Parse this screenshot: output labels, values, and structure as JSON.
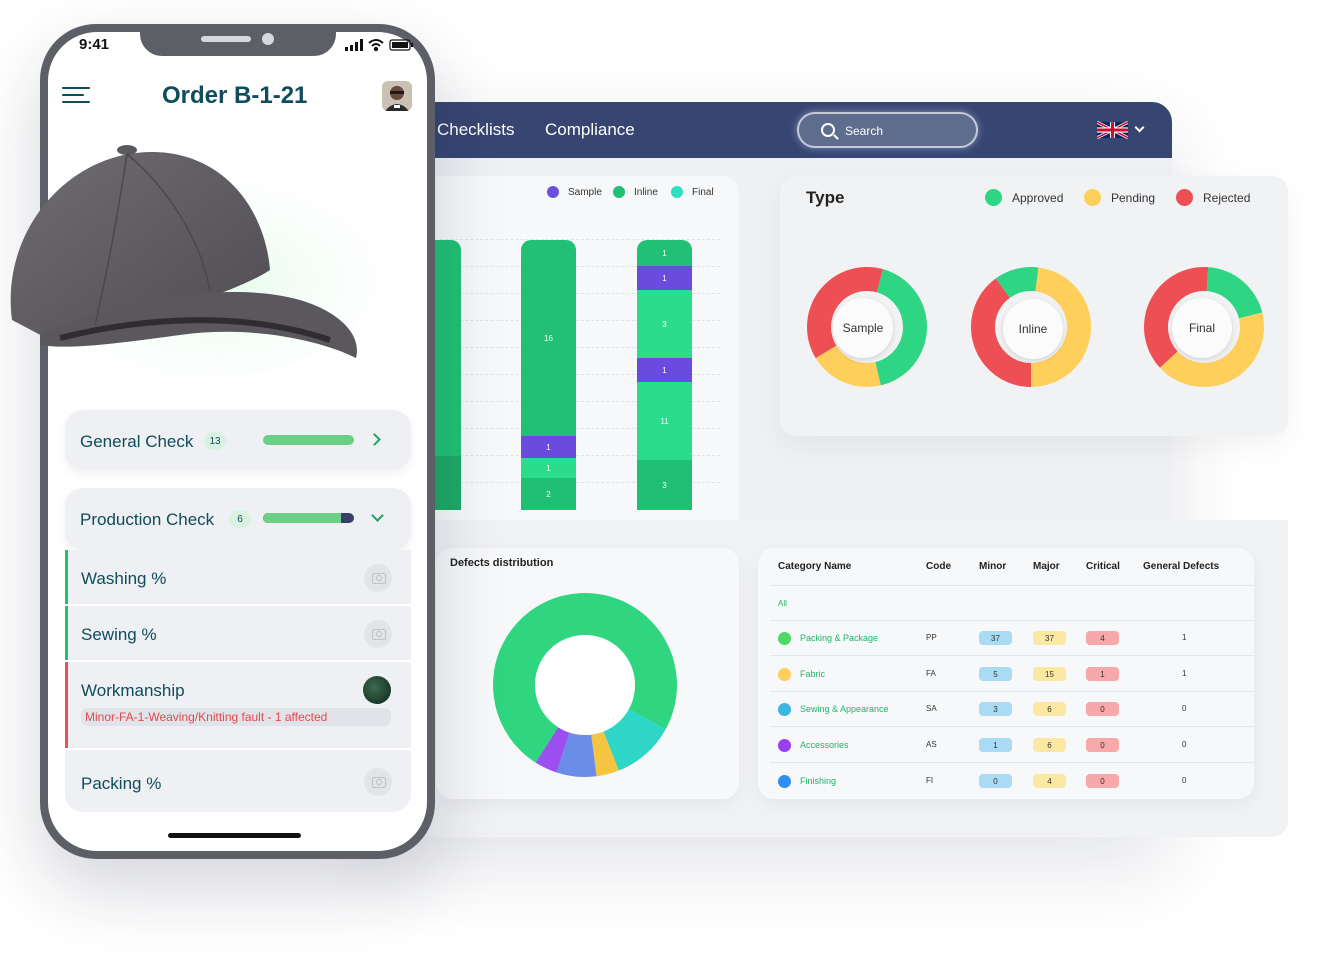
{
  "dashboard": {
    "nav": [
      "Checklists",
      "Compliance"
    ],
    "search_placeholder": "Search",
    "language_icon": "uk-flag-icon",
    "bar_chart": {
      "legend": [
        {
          "label": "Sample",
          "color": "#6c4fe0"
        },
        {
          "label": "Inline",
          "color": "#1fbf74"
        },
        {
          "label": "Final",
          "color": "#2ee0c0"
        }
      ]
    },
    "type_panel": {
      "title": "Type",
      "legend": [
        {
          "label": "Approved",
          "color": "#2ed683"
        },
        {
          "label": "Pending",
          "color": "#ffcf5c"
        },
        {
          "label": "Rejected",
          "color": "#ee4f55"
        }
      ],
      "donuts": [
        {
          "label": "Sample",
          "slices": [
            {
              "status": "Approved",
              "value": 0.42
            },
            {
              "status": "Pending",
              "value": 0.2
            },
            {
              "status": "Rejected",
              "value": 0.38
            }
          ]
        },
        {
          "label": "Inline",
          "slices": [
            {
              "status": "Approved",
              "value": 0.12
            },
            {
              "status": "Pending",
              "value": 0.48
            },
            {
              "status": "Rejected",
              "value": 0.4
            }
          ]
        },
        {
          "label": "Final",
          "slices": [
            {
              "status": "Approved",
              "value": 0.2
            },
            {
              "status": "Pending",
              "value": 0.42
            },
            {
              "status": "Rejected",
              "value": 0.38
            }
          ]
        }
      ]
    },
    "defects_distribution": {
      "title": "Defects distribution"
    },
    "table": {
      "headers": [
        "Category Name",
        "Code",
        "Minor",
        "Major",
        "Critical",
        "General Defects"
      ],
      "filter_label": "All",
      "rows": [
        {
          "name": "Packing & Package",
          "code": "PP",
          "minor": "37",
          "major": "37",
          "critical": "4",
          "general": "1",
          "color": "#4cd964"
        },
        {
          "name": "Fabric",
          "code": "FA",
          "minor": "5",
          "major": "15",
          "critical": "1",
          "general": "1",
          "color": "#ffcf5c"
        },
        {
          "name": "Sewing & Appearance",
          "code": "SA",
          "minor": "3",
          "major": "6",
          "critical": "0",
          "general": "0",
          "color": "#3cb5e0"
        },
        {
          "name": "Accessories",
          "code": "AS",
          "minor": "1",
          "major": "6",
          "critical": "0",
          "general": "0",
          "color": "#9b3df0"
        },
        {
          "name": "Finishing",
          "code": "FI",
          "minor": "0",
          "major": "4",
          "critical": "0",
          "general": "0",
          "color": "#2f8ff0"
        }
      ]
    }
  },
  "chart_data": [
    {
      "type": "bar",
      "stacked": true,
      "categories": [
        "",
        "",
        ""
      ],
      "series": [
        {
          "name": "Sample",
          "values": [
            null,
            1,
            1
          ]
        },
        {
          "name": "Inline",
          "values": [
            null,
            2,
            3
          ]
        },
        {
          "name": "Final",
          "values": [
            null,
            1,
            3
          ]
        }
      ],
      "data_labels": [
        [],
        [
          "16",
          "1",
          "1",
          "2"
        ],
        [
          "1",
          "1",
          "3",
          "1",
          "11",
          "3"
        ]
      ],
      "legend_position": "top-right",
      "grid": true
    },
    {
      "type": "pie",
      "title": "Defects distribution",
      "categories": [
        "Packing & Package",
        "Sewing & Appearance",
        "Fabric",
        "Finishing",
        "Accessories"
      ],
      "values": [
        0.74,
        0.11,
        0.04,
        0.07,
        0.04
      ],
      "colors": [
        "#2fd67f",
        "#2ed6c7",
        "#f5c542",
        "#6a8ee8",
        "#9b4ff0"
      ]
    }
  ],
  "phone": {
    "time": "9:41",
    "title": "Order B-1-21",
    "checks": [
      {
        "label": "General Check",
        "count": "13",
        "progress": 1.0,
        "expanded": false
      },
      {
        "label": "Production Check",
        "count": "6",
        "progress": 0.86,
        "expanded": true
      }
    ],
    "items": [
      {
        "label": "Washing %",
        "status": "camera"
      },
      {
        "label": "Sewing %",
        "status": "camera"
      },
      {
        "label": "Workmanship",
        "status": "photo",
        "defect": "Minor-FA-1-Weaving/Knitting fault - 1 affected"
      },
      {
        "label": "Packing %",
        "status": "camera"
      }
    ]
  }
}
